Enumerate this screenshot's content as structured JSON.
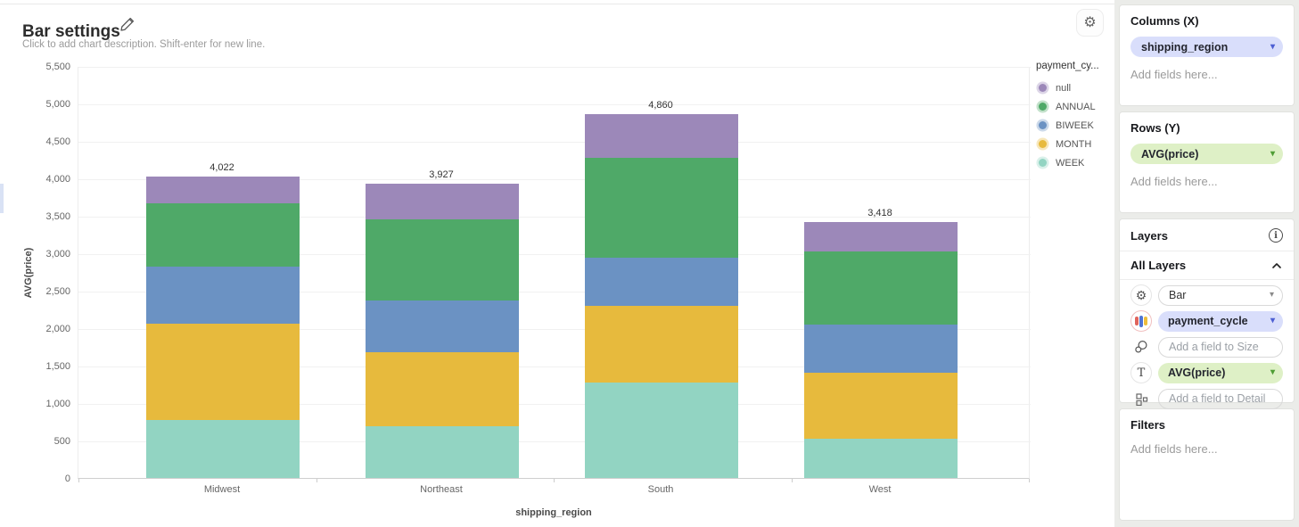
{
  "header": {
    "title": "Bar settings",
    "description_placeholder": "Click to add chart description. Shift-enter for new line."
  },
  "icons": {
    "gear": "⚙",
    "caret_down": "▾",
    "info": "i"
  },
  "chart_data": {
    "type": "bar",
    "stacked": true,
    "xlabel": "shipping_region",
    "ylabel": "AVG(price)",
    "ylim": [
      0,
      5500
    ],
    "y_tick_step": 500,
    "y_ticks": [
      "0",
      "500",
      "1,000",
      "1,500",
      "2,000",
      "2,500",
      "3,000",
      "3,500",
      "4,000",
      "4,500",
      "5,000",
      "5,500"
    ],
    "grid": true,
    "categories": [
      "Midwest",
      "Northeast",
      "South",
      "West"
    ],
    "totals": [
      "4,022",
      "3,927",
      "4,860",
      "3,418"
    ],
    "legend_title": "payment_cy...",
    "legend_position": "right",
    "legend_order": [
      "null",
      "ANNUAL",
      "BIWEEK",
      "MONTH",
      "WEEK"
    ],
    "series": [
      {
        "name": "WEEK",
        "color": "#92d4c2",
        "values": [
          770,
          687,
          1269,
          527
        ]
      },
      {
        "name": "MONTH",
        "color": "#e7ba3d",
        "values": [
          1284,
          996,
          1032,
          883
        ]
      },
      {
        "name": "BIWEEK",
        "color": "#6b92c3",
        "values": [
          764,
          691,
          635,
          642
        ]
      },
      {
        "name": "ANNUAL",
        "color": "#4fa968",
        "values": [
          852,
          1076,
          1334,
          976
        ]
      },
      {
        "name": "null",
        "color": "#9c88b9",
        "values": [
          352,
          477,
          590,
          390
        ]
      }
    ]
  },
  "panel": {
    "columns": {
      "title": "Columns (X)",
      "pill": "shipping_region",
      "placeholder": "Add fields here..."
    },
    "rows": {
      "title": "Rows (Y)",
      "pill": "AVG(price)",
      "placeholder": "Add fields here..."
    },
    "layers": {
      "title": "Layers",
      "all_layers_label": "All Layers",
      "bar_select": "Bar",
      "color_pill": "payment_cycle",
      "size_placeholder": "Add a field to Size",
      "text_pill": "AVG(price)",
      "detail_placeholder": "Add a field to Detail"
    },
    "filters": {
      "title": "Filters",
      "placeholder": "Add fields here..."
    }
  },
  "colors": {
    "pill_lavender": "#d9defb",
    "pill_green": "#def0c6",
    "panel_bg": "#ebece9",
    "accent_blue": "#4d5fd3",
    "accent_green": "#4f9d35"
  }
}
